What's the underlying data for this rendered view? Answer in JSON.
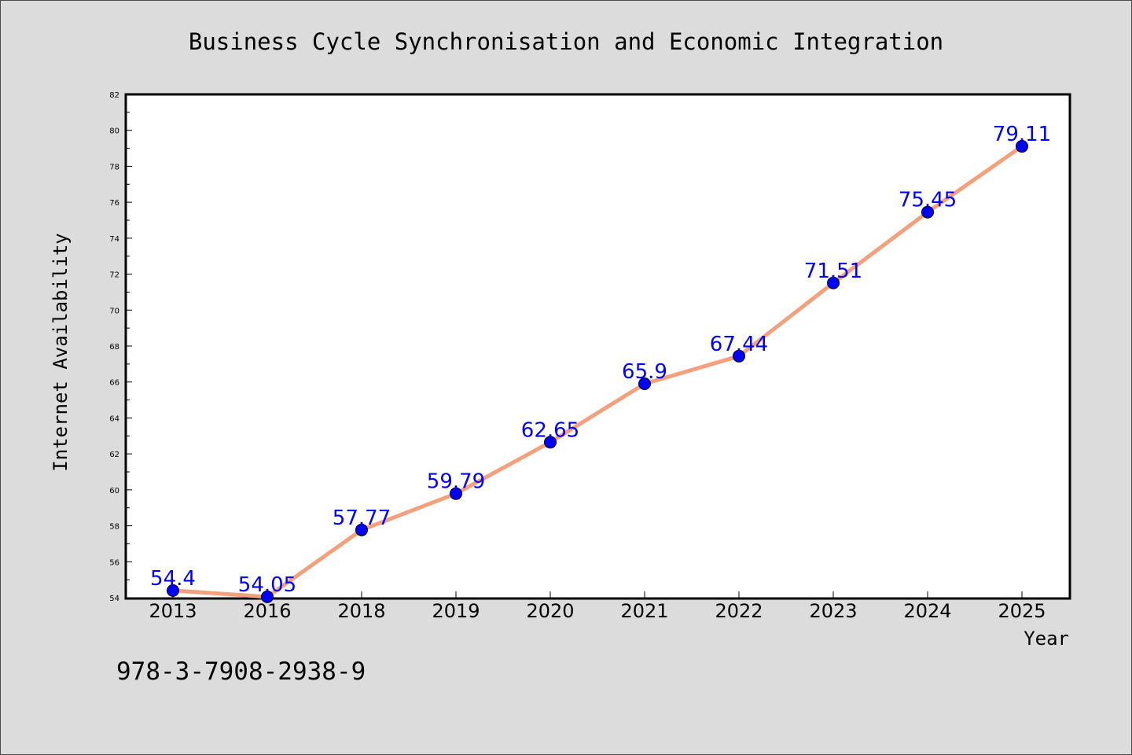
{
  "chart_data": {
    "type": "line",
    "title": "Business Cycle Synchronisation and Economic Integration",
    "xlabel": "Year",
    "ylabel": "Internet Availability",
    "categories": [
      "2013",
      "2016",
      "2018",
      "2019",
      "2020",
      "2021",
      "2022",
      "2023",
      "2024",
      "2025"
    ],
    "values": [
      54.4,
      54.05,
      57.77,
      59.79,
      62.65,
      65.9,
      67.44,
      71.51,
      75.45,
      79.11
    ],
    "data_labels": [
      "54.4",
      "54.05",
      "57.77",
      "59.79",
      "62.65",
      "65.9",
      "67.44",
      "71.51",
      "75.45",
      "79.11"
    ],
    "ylim": [
      54,
      82
    ],
    "yticks": [
      54,
      56,
      58,
      60,
      62,
      64,
      66,
      68,
      70,
      72,
      74,
      76,
      78,
      80,
      82
    ],
    "line_color": "#f4a07c",
    "marker_color": "#0000ff",
    "label_color": "#0000ff",
    "grid": false,
    "legend": "none"
  },
  "footer_text": "978-3-7908-2938-9"
}
